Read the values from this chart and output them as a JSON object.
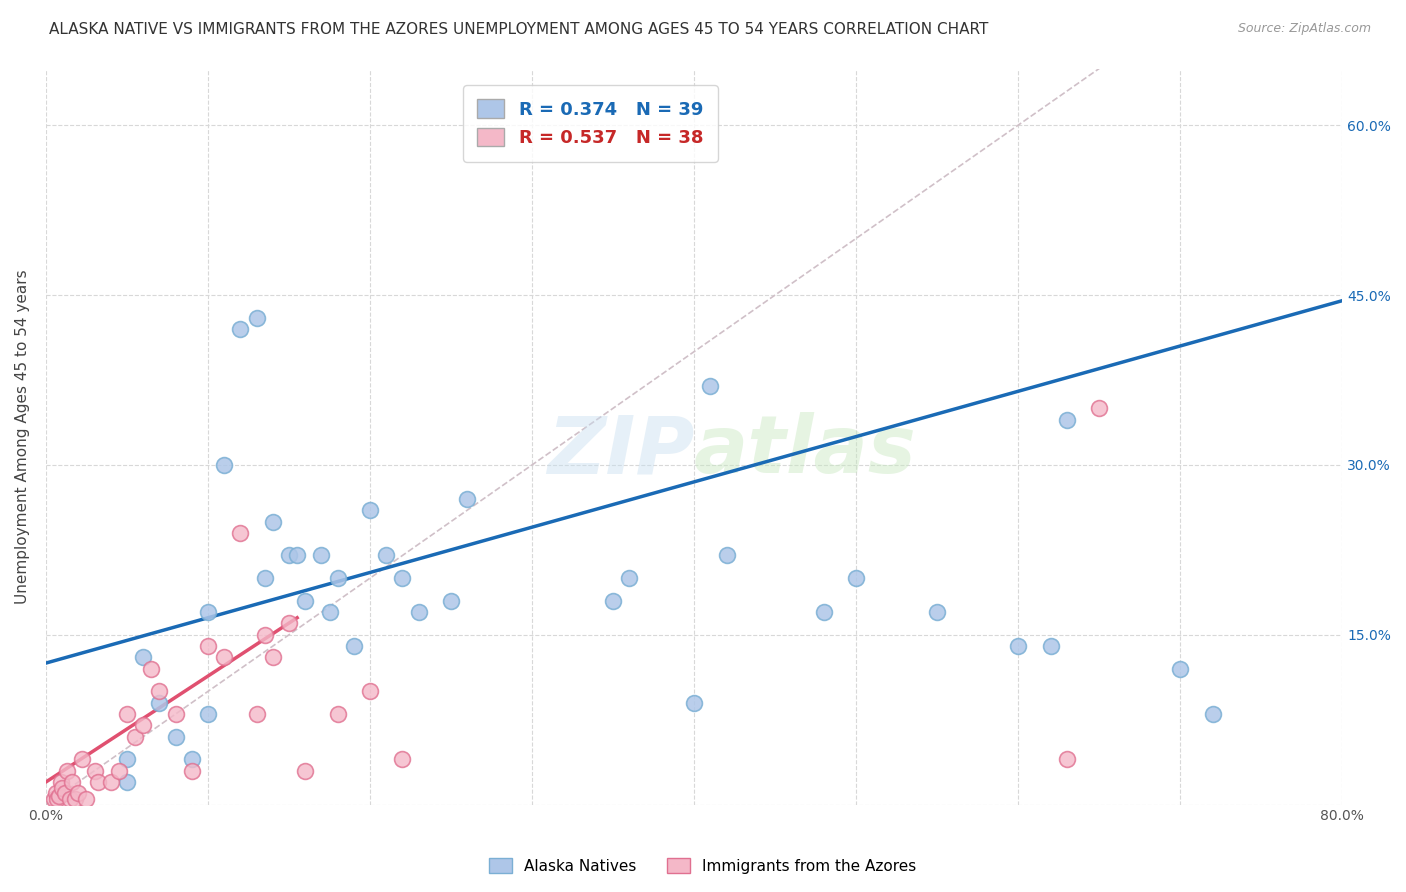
{
  "title": "ALASKA NATIVE VS IMMIGRANTS FROM THE AZORES UNEMPLOYMENT AMONG AGES 45 TO 54 YEARS CORRELATION CHART",
  "source": "Source: ZipAtlas.com",
  "ylabel": "Unemployment Among Ages 45 to 54 years",
  "xlim": [
    0,
    0.8
  ],
  "ylim": [
    0,
    0.65
  ],
  "xtick_positions": [
    0.0,
    0.1,
    0.2,
    0.3,
    0.4,
    0.5,
    0.6,
    0.7,
    0.8
  ],
  "ytick_positions": [
    0.0,
    0.15,
    0.3,
    0.45,
    0.6
  ],
  "yticklabels_right": [
    "",
    "15.0%",
    "30.0%",
    "45.0%",
    "60.0%"
  ],
  "watermark": "ZIPatlas",
  "legend_label1_r": "0.374",
  "legend_label1_n": "39",
  "legend_label2_r": "0.537",
  "legend_label2_n": "38",
  "blue_scatter_x": [
    0.05,
    0.05,
    0.06,
    0.07,
    0.08,
    0.09,
    0.1,
    0.1,
    0.11,
    0.12,
    0.13,
    0.135,
    0.14,
    0.15,
    0.155,
    0.16,
    0.17,
    0.175,
    0.18,
    0.19,
    0.2,
    0.21,
    0.22,
    0.23,
    0.25,
    0.26,
    0.35,
    0.36,
    0.4,
    0.41,
    0.42,
    0.48,
    0.5,
    0.55,
    0.6,
    0.62,
    0.63,
    0.7,
    0.72
  ],
  "blue_scatter_y": [
    0.02,
    0.04,
    0.13,
    0.09,
    0.06,
    0.04,
    0.08,
    0.17,
    0.3,
    0.42,
    0.43,
    0.2,
    0.25,
    0.22,
    0.22,
    0.18,
    0.22,
    0.17,
    0.2,
    0.14,
    0.26,
    0.22,
    0.2,
    0.17,
    0.18,
    0.27,
    0.18,
    0.2,
    0.09,
    0.37,
    0.22,
    0.17,
    0.2,
    0.17,
    0.14,
    0.14,
    0.34,
    0.12,
    0.08
  ],
  "pink_scatter_x": [
    0.005,
    0.006,
    0.007,
    0.008,
    0.009,
    0.01,
    0.012,
    0.013,
    0.015,
    0.016,
    0.018,
    0.02,
    0.022,
    0.025,
    0.03,
    0.032,
    0.04,
    0.045,
    0.05,
    0.055,
    0.06,
    0.065,
    0.07,
    0.08,
    0.09,
    0.1,
    0.11,
    0.12,
    0.13,
    0.135,
    0.14,
    0.15,
    0.16,
    0.18,
    0.2,
    0.22,
    0.63,
    0.65
  ],
  "pink_scatter_y": [
    0.005,
    0.01,
    0.005,
    0.008,
    0.02,
    0.015,
    0.01,
    0.03,
    0.005,
    0.02,
    0.005,
    0.01,
    0.04,
    0.005,
    0.03,
    0.02,
    0.02,
    0.03,
    0.08,
    0.06,
    0.07,
    0.12,
    0.1,
    0.08,
    0.03,
    0.14,
    0.13,
    0.24,
    0.08,
    0.15,
    0.13,
    0.16,
    0.03,
    0.08,
    0.1,
    0.04,
    0.04,
    0.35
  ],
  "blue_line_x": [
    0.0,
    0.8
  ],
  "blue_line_y": [
    0.125,
    0.445
  ],
  "pink_line_x": [
    0.0,
    0.155
  ],
  "pink_line_y": [
    0.02,
    0.165
  ],
  "diag_line_x": [
    0.0,
    0.65
  ],
  "diag_line_y": [
    0.0,
    0.65
  ],
  "bg_color": "#ffffff",
  "grid_color": "#d8d8d8",
  "blue_scatter_color": "#aec6e8",
  "blue_scatter_edge": "#7bafd4",
  "pink_scatter_color": "#f4b8c8",
  "pink_scatter_edge": "#e07090",
  "blue_line_color": "#1a6ab5",
  "pink_line_color": "#e05070",
  "diag_line_color": "#d0c0c8",
  "title_fontsize": 11,
  "axis_label_fontsize": 11,
  "tick_fontsize": 10,
  "scatter_size": 130
}
